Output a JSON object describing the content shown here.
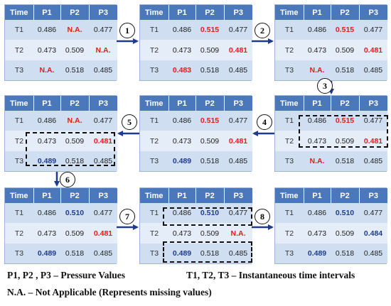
{
  "header": [
    "Time",
    "P1",
    "P2",
    "P3"
  ],
  "rows": [
    "T1",
    "T2",
    "T3"
  ],
  "panels": [
    {
      "id": "p1",
      "values": [
        [
          "0.486",
          "N.A.",
          "0.477"
        ],
        [
          "0.473",
          "0.509",
          "N.A."
        ],
        [
          "N.A.",
          "0.518",
          "0.485"
        ]
      ],
      "styles": [
        [
          "",
          "missing",
          ""
        ],
        [
          "",
          "",
          "missing"
        ],
        [
          "missing",
          "",
          ""
        ]
      ]
    },
    {
      "id": "p2",
      "values": [
        [
          "0.486",
          "0.515",
          "0.477"
        ],
        [
          "0.473",
          "0.509",
          "0.481"
        ],
        [
          "0.483",
          "0.518",
          "0.485"
        ]
      ],
      "styles": [
        [
          "",
          "red",
          ""
        ],
        [
          "",
          "",
          "red"
        ],
        [
          "red",
          "",
          ""
        ]
      ]
    },
    {
      "id": "p3",
      "values": [
        [
          "0.486",
          "0.515",
          "0.477"
        ],
        [
          "0.473",
          "0.509",
          "0.481"
        ],
        [
          "N.A.",
          "0.518",
          "0.485"
        ]
      ],
      "styles": [
        [
          "",
          "red",
          ""
        ],
        [
          "",
          "",
          "red"
        ],
        [
          "missing",
          "",
          ""
        ]
      ]
    },
    {
      "id": "p4",
      "values": [
        [
          "0.486",
          "0.515",
          "0.477"
        ],
        [
          "0.473",
          "0.509",
          "0.481"
        ],
        [
          "N.A.",
          "0.518",
          "0.485"
        ]
      ],
      "styles": [
        [
          "",
          "red",
          ""
        ],
        [
          "",
          "",
          "red"
        ],
        [
          "missing",
          "",
          ""
        ]
      ]
    },
    {
      "id": "p5",
      "values": [
        [
          "0.486",
          "0.515",
          "0.477"
        ],
        [
          "0.473",
          "0.509",
          "0.481"
        ],
        [
          "0.489",
          "0.518",
          "0.485"
        ]
      ],
      "styles": [
        [
          "",
          "red",
          ""
        ],
        [
          "",
          "",
          "red"
        ],
        [
          "blue",
          "",
          ""
        ]
      ]
    },
    {
      "id": "p6",
      "values": [
        [
          "0.486",
          "N.A.",
          "0.477"
        ],
        [
          "0.473",
          "0.509",
          "0.481"
        ],
        [
          "0.489",
          "0.518",
          "0.485"
        ]
      ],
      "styles": [
        [
          "",
          "missing",
          ""
        ],
        [
          "",
          "",
          "red"
        ],
        [
          "blue",
          "",
          ""
        ]
      ]
    },
    {
      "id": "p7",
      "values": [
        [
          "0.486",
          "0.510",
          "0.477"
        ],
        [
          "0.473",
          "0.509",
          "0.481"
        ],
        [
          "0.489",
          "0.518",
          "0.485"
        ]
      ],
      "styles": [
        [
          "",
          "blue",
          ""
        ],
        [
          "",
          "",
          "red"
        ],
        [
          "blue",
          "",
          ""
        ]
      ]
    },
    {
      "id": "p8",
      "values": [
        [
          "0.486",
          "0.510",
          "0.477"
        ],
        [
          "0.473",
          "0.509",
          "N.A."
        ],
        [
          "0.489",
          "0.518",
          "0.485"
        ]
      ],
      "styles": [
        [
          "",
          "blue",
          ""
        ],
        [
          "",
          "",
          "missing"
        ],
        [
          "blue",
          "",
          ""
        ]
      ]
    },
    {
      "id": "p9",
      "values": [
        [
          "0.486",
          "0.510",
          "0.477"
        ],
        [
          "0.473",
          "0.509",
          "0.484"
        ],
        [
          "0.489",
          "0.518",
          "0.485"
        ]
      ],
      "styles": [
        [
          "",
          "blue",
          ""
        ],
        [
          "",
          "",
          "blue"
        ],
        [
          "blue",
          "",
          ""
        ]
      ]
    }
  ],
  "steps": [
    "1",
    "2",
    "3",
    "4",
    "5",
    "6",
    "7",
    "8"
  ],
  "legend": {
    "pressure": "P1, P2 , P3 – Pressure  Values",
    "time": "T1, T2, T3 – Instantaneous time intervals",
    "na": "N.A. – Not Applicable (Represents missing values)"
  },
  "colors": {
    "header": "#4a78bb",
    "cell_light": "#e4edf8",
    "cell_dark": "#cfdff1",
    "missing": "#e8191b",
    "imputed": "#1f3b8f",
    "arrow": "#1f3b8f"
  }
}
